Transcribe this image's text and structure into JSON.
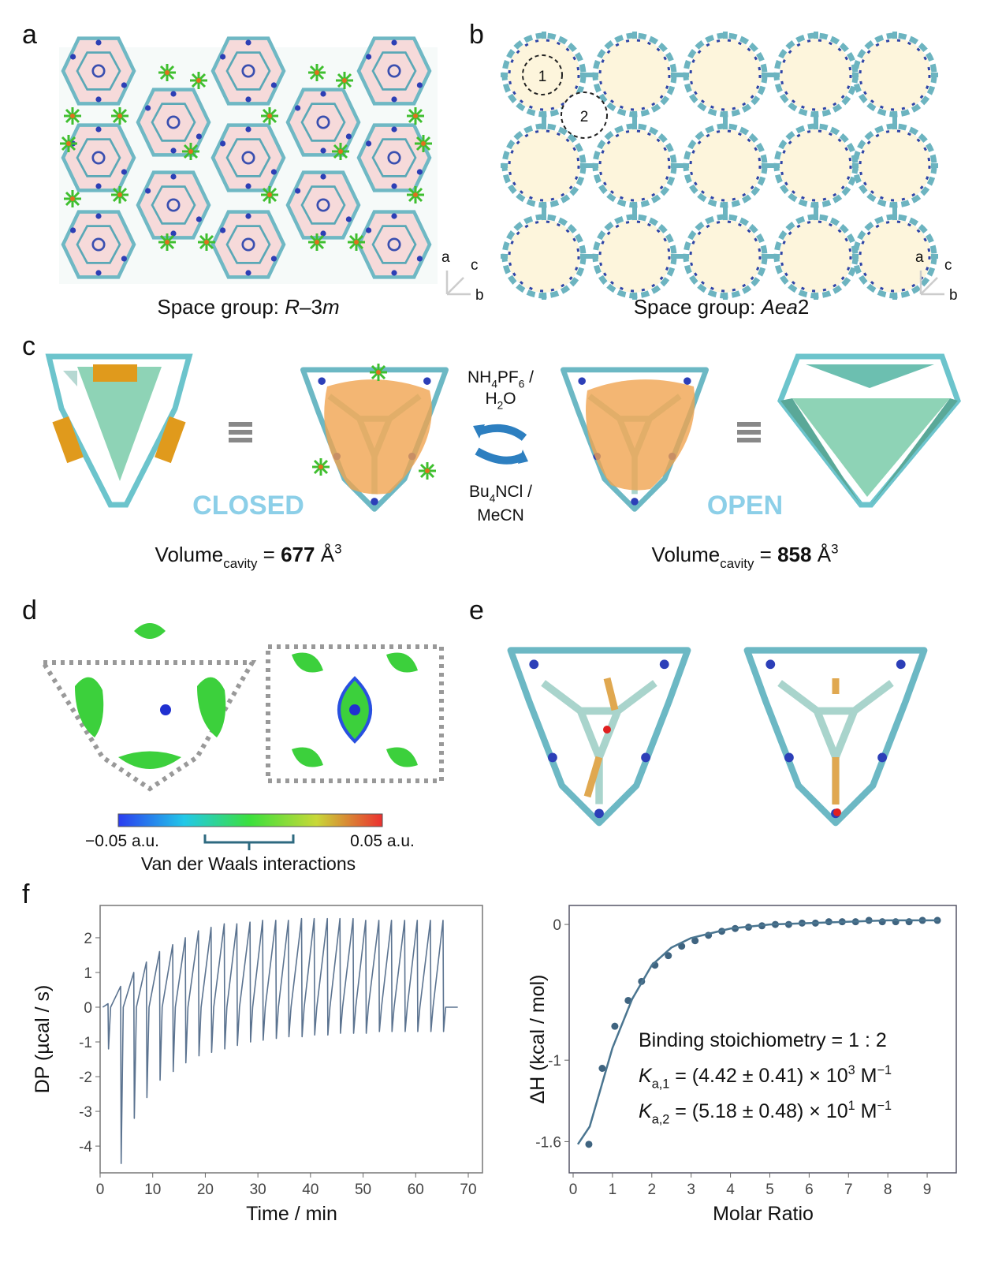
{
  "panels": {
    "a": {
      "label": "a",
      "caption": [
        {
          "text": "Space group: ",
          "style": "normal"
        },
        {
          "text": "R",
          "style": "italic"
        },
        {
          "text": "–3",
          "style": "normal"
        },
        {
          "text": "m",
          "style": "italic"
        }
      ],
      "axes": [
        "a",
        "c",
        "b"
      ]
    },
    "b": {
      "label": "b",
      "caption": [
        {
          "text": "Space group: ",
          "style": "normal"
        },
        {
          "text": "Aea",
          "style": "italic"
        },
        {
          "text": "2",
          "style": "normal"
        }
      ],
      "axes": [
        "a",
        "c",
        "b"
      ],
      "pores": [
        "1",
        "2"
      ]
    },
    "c": {
      "label": "c",
      "closed": "CLOSED",
      "open": "OPEN",
      "forward": [
        [
          {
            "text": "NH",
            "style": "normal"
          },
          {
            "text": "4",
            "style": "sub"
          },
          {
            "text": "PF",
            "style": "normal"
          },
          {
            "text": "6",
            "style": "sub"
          },
          {
            "text": " /",
            "style": "normal"
          }
        ],
        [
          {
            "text": "H",
            "style": "normal"
          },
          {
            "text": "2",
            "style": "sub"
          },
          {
            "text": "O",
            "style": "normal"
          }
        ]
      ],
      "backward": [
        [
          {
            "text": "Bu",
            "style": "normal"
          },
          {
            "text": "4",
            "style": "sub"
          },
          {
            "text": "NCl /",
            "style": "normal"
          }
        ],
        [
          {
            "text": "MeCN",
            "style": "normal"
          }
        ]
      ],
      "volume_closed": [
        {
          "text": "Volume",
          "style": "normal"
        },
        {
          "text": "cavity",
          "style": "sub"
        },
        {
          "text": " = ",
          "style": "normal"
        },
        {
          "text": 677,
          "style": "bold"
        },
        {
          "text": " Å",
          "style": "normal"
        },
        {
          "text": "3",
          "style": "sup"
        }
      ],
      "volume_open": [
        {
          "text": "Volume",
          "style": "normal"
        },
        {
          "text": "cavity",
          "style": "sub"
        },
        {
          "text": " = ",
          "style": "normal"
        },
        {
          "text": 858,
          "style": "bold"
        },
        {
          "text": " Å",
          "style": "normal"
        },
        {
          "text": "3",
          "style": "sup"
        }
      ]
    },
    "d": {
      "label": "d",
      "scale_min": "−0.05 a.u.",
      "scale_max": "0.05 a.u.",
      "scale_caption": "Van der Waals interactions"
    },
    "e": {
      "label": "e"
    },
    "f": {
      "label": "f",
      "annotation": [
        [
          {
            "text": "Binding stoichiometry = 1 : 2",
            "style": "normal"
          }
        ],
        [
          {
            "text": "K",
            "style": "italic"
          },
          {
            "text": "a,1",
            "style": "sub"
          },
          {
            "text": " = (4.42 ± 0.41) × 10",
            "style": "normal"
          },
          {
            "text": "3",
            "style": "sup"
          },
          {
            "text": " M",
            "style": "normal"
          },
          {
            "text": "−1",
            "style": "sup"
          }
        ],
        [
          {
            "text": "K",
            "style": "italic"
          },
          {
            "text": "a,2",
            "style": "sub"
          },
          {
            "text": " = (5.18 ± 0.48) × 10",
            "style": "normal"
          },
          {
            "text": "1",
            "style": "sup"
          },
          {
            "text": " M",
            "style": "normal"
          },
          {
            "text": "−1",
            "style": "sup"
          }
        ]
      ]
    }
  },
  "chart_data": [
    {
      "type": "line",
      "x_label": "Time / min",
      "y_label": "DP (µcal / s)",
      "xlim": [
        0,
        72.7
      ],
      "ylim": [
        -4.77,
        2.93
      ],
      "xticks": [
        0,
        10,
        20,
        30,
        40,
        50,
        60,
        70
      ],
      "yticks": [
        -4,
        -3,
        -2,
        -1,
        0,
        1,
        2
      ],
      "series": [
        {
          "color": "#5b7390",
          "x": [
            0.5,
            1.5,
            1.6,
            2.0,
            3.9,
            4.0,
            4.4,
            6.4,
            6.5,
            6.9,
            8.8,
            8.9,
            9.3,
            11.3,
            11.4,
            11.8,
            13.8,
            13.9,
            14.3,
            16.2,
            16.3,
            16.7,
            18.7,
            18.8,
            19.2,
            21.1,
            21.2,
            21.6,
            23.6,
            23.7,
            24.1,
            26.0,
            26.1,
            26.5,
            28.5,
            28.6,
            29.0,
            30.9,
            31.0,
            31.4,
            33.4,
            33.5,
            33.9,
            35.8,
            35.9,
            36.3,
            38.3,
            38.4,
            38.8,
            40.7,
            40.8,
            41.2,
            43.2,
            43.3,
            43.7,
            45.6,
            45.7,
            46.1,
            48.1,
            48.2,
            48.6,
            50.5,
            50.6,
            51.0,
            53.0,
            53.1,
            53.5,
            55.4,
            55.5,
            55.9,
            57.9,
            58.0,
            58.4,
            60.3,
            60.4,
            60.8,
            62.8,
            62.9,
            63.3,
            65.2,
            65.3,
            65.7,
            68
          ],
          "values": [
            0,
            0.1,
            -1.2,
            0,
            0.6,
            -4.5,
            0,
            1.0,
            -3.2,
            0,
            1.3,
            -2.6,
            0,
            1.6,
            -2.1,
            0,
            1.8,
            -1.85,
            0,
            2.0,
            -1.6,
            0,
            2.2,
            -1.4,
            0,
            2.3,
            -1.3,
            0,
            2.4,
            -1.2,
            0,
            2.4,
            -1.1,
            0,
            2.45,
            -1.0,
            0,
            2.5,
            -0.95,
            0,
            2.5,
            -0.9,
            0,
            2.5,
            -0.85,
            0,
            2.55,
            -0.85,
            0,
            2.55,
            -0.8,
            0,
            2.55,
            -0.8,
            0,
            2.55,
            -0.75,
            0,
            2.55,
            -0.75,
            0,
            2.5,
            -0.75,
            0,
            2.5,
            -0.7,
            0,
            2.5,
            -0.7,
            0,
            2.5,
            -0.7,
            0,
            2.5,
            -0.7,
            0,
            2.5,
            -0.7,
            0,
            2.5,
            -0.7,
            0,
            0
          ]
        }
      ]
    },
    {
      "type": "scatter",
      "x_label": "Molar Ratio",
      "y_label": "ΔH (kcal / mol)",
      "xlim": [
        -0.1,
        9.74
      ],
      "ylim": [
        -1.83,
        0.14
      ],
      "xticks": [
        0,
        1,
        2,
        3,
        4,
        5,
        6,
        7,
        8,
        9
      ],
      "yticks": [
        -1.6,
        -1,
        0
      ],
      "series": [
        {
          "type": "scatter",
          "color": "#3f6480",
          "x": [
            0.4,
            0.74,
            1.06,
            1.4,
            1.74,
            2.08,
            2.42,
            2.76,
            3.1,
            3.44,
            3.78,
            4.12,
            4.46,
            4.8,
            5.14,
            5.48,
            5.82,
            6.16,
            6.5,
            6.84,
            7.18,
            7.52,
            7.86,
            8.2,
            8.54,
            8.88,
            9.26
          ],
          "values": [
            -1.62,
            -1.06,
            -0.75,
            -0.56,
            -0.42,
            -0.3,
            -0.23,
            -0.16,
            -0.12,
            -0.08,
            -0.05,
            -0.03,
            -0.02,
            -0.01,
            0.0,
            0.0,
            0.01,
            0.01,
            0.02,
            0.02,
            0.02,
            0.03,
            0.02,
            0.02,
            0.02,
            0.03,
            0.03
          ]
        },
        {
          "type": "line",
          "color": "#4a7590",
          "x": [
            0.12,
            0.42,
            1,
            1.5,
            2,
            2.5,
            3,
            4,
            5,
            6,
            7,
            8,
            9.3
          ],
          "values": [
            -1.62,
            -1.49,
            -0.91,
            -0.55,
            -0.3,
            -0.17,
            -0.1,
            -0.03,
            0,
            0.01,
            0.02,
            0.03,
            0.03
          ]
        }
      ]
    }
  ]
}
